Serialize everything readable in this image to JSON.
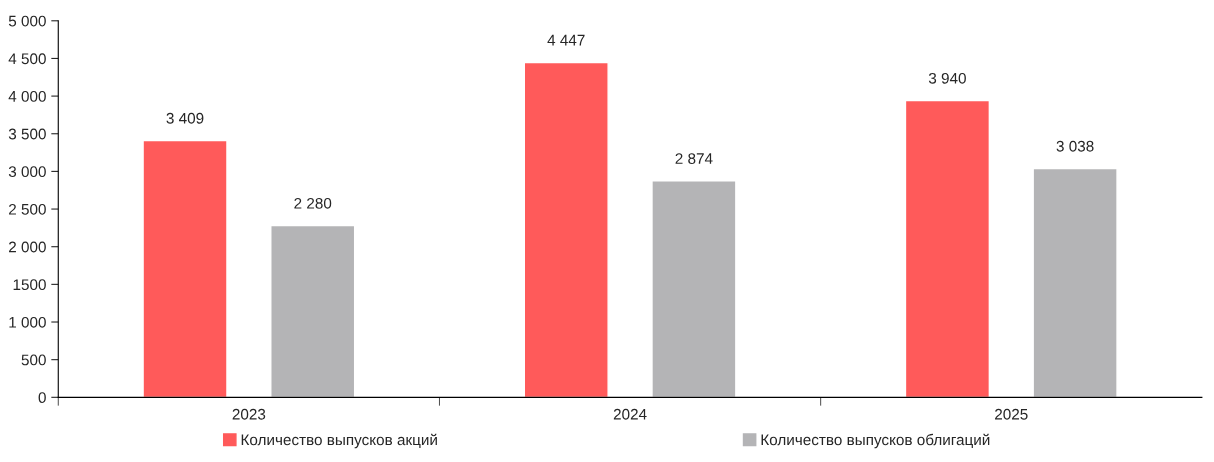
{
  "chart_data": {
    "type": "bar",
    "categories": [
      "2023",
      "2024",
      "2025"
    ],
    "series": [
      {
        "name": "Количество выпусков акций",
        "color": "#ff5a5a",
        "values": [
          3409,
          4447,
          3940
        ],
        "value_labels": [
          "3 409",
          "4 447",
          "3 940"
        ]
      },
      {
        "name": "Количество выпусков облигаций",
        "color": "#b4b4b6",
        "values": [
          2280,
          2874,
          3038
        ],
        "value_labels": [
          "2 280",
          "2 874",
          "3 038"
        ]
      }
    ],
    "ylim": [
      0,
      5000
    ],
    "yticks": [
      0,
      500,
      {
        "value": 1000,
        "label": "1 000"
      },
      1500,
      {
        "value": 2000,
        "label": "2 000"
      },
      {
        "value": 2500,
        "label": "2 500"
      },
      {
        "value": 3000,
        "label": "3 000"
      },
      {
        "value": 3500,
        "label": "3 500"
      },
      {
        "value": 4000,
        "label": "4 000"
      },
      {
        "value": 4500,
        "label": "4 500"
      },
      {
        "value": 5000,
        "label": "5 000"
      }
    ],
    "grid": false,
    "legend": "bottom"
  }
}
